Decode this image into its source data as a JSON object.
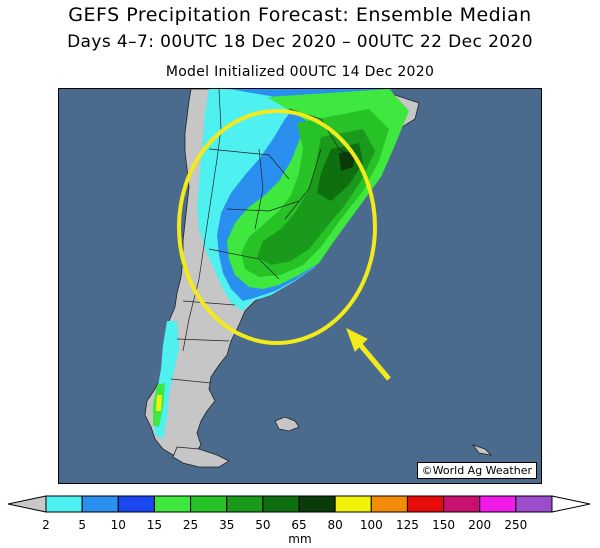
{
  "title": "GEFS Precipitation Forecast: Ensemble Median",
  "subtitle": "Days 4–7: 00UTC 18 Dec 2020 – 00UTC 22 Dec 2020",
  "initialized": "Model Initialized 00UTC 14 Dec 2020",
  "credit": "©World Ag Weather",
  "colorbar": {
    "unit": "mm",
    "ticks": [
      "2",
      "5",
      "10",
      "15",
      "25",
      "35",
      "50",
      "65",
      "80",
      "100",
      "125",
      "150",
      "200",
      "250"
    ],
    "colors": [
      "#4ef0f0",
      "#2b8ff0",
      "#1a46f0",
      "#3ee83e",
      "#26c226",
      "#1a9a1a",
      "#0d6f0d",
      "#0a3a0a",
      "#f2f20a",
      "#f28c0a",
      "#e60a0a",
      "#c8106e",
      "#f01aeb",
      "#9b4dce"
    ],
    "under_color": "#c8c8c8",
    "over_color": "#ffffff"
  },
  "map": {
    "ocean_color": "#4a6b8e",
    "land_color": "#c6c6c6",
    "highlight_circle_color": "#f2ea1a",
    "arrow_color": "#f2ea1a"
  }
}
